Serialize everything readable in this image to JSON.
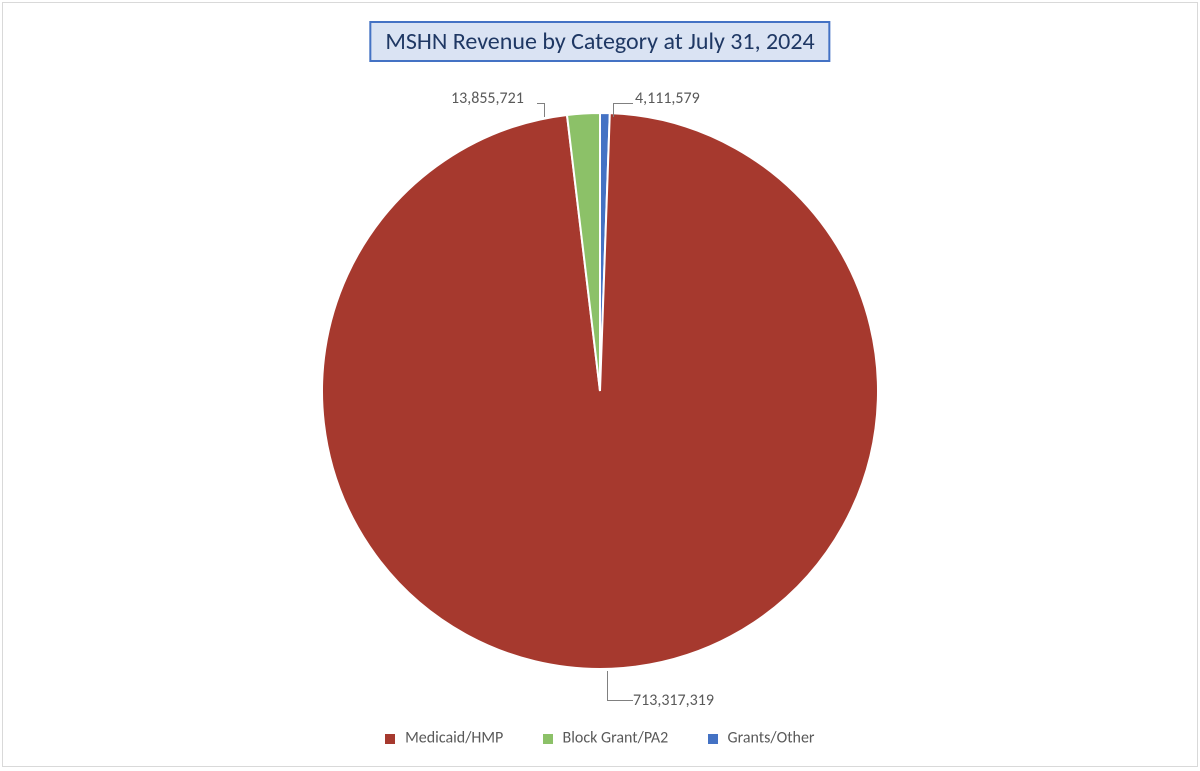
{
  "chart": {
    "type": "pie",
    "title": "MSHN Revenue by Category at July 31, 2024",
    "title_fontsize": 24,
    "title_bg": "#dae3f3",
    "title_border": "#4472c4",
    "title_color": "#1f3864",
    "background_color": "#ffffff",
    "frame_border_color": "#d9d9d9",
    "label_fontsize": 16,
    "label_color": "#595959",
    "slice_gap_color": "#ffffff",
    "series": [
      {
        "name": "Medicaid/HMP",
        "value": 713317319,
        "label": "713,317,319",
        "color": "#a6392e"
      },
      {
        "name": "Block Grant/PA2",
        "value": 13855721,
        "label": "13,855,721",
        "color": "#8cc168"
      },
      {
        "name": "Grants/Other",
        "value": 4111579,
        "label": "4,111,579",
        "color": "#4472c4"
      }
    ],
    "legend": {
      "position": "bottom",
      "fontsize": 16,
      "color": "#595959"
    }
  }
}
